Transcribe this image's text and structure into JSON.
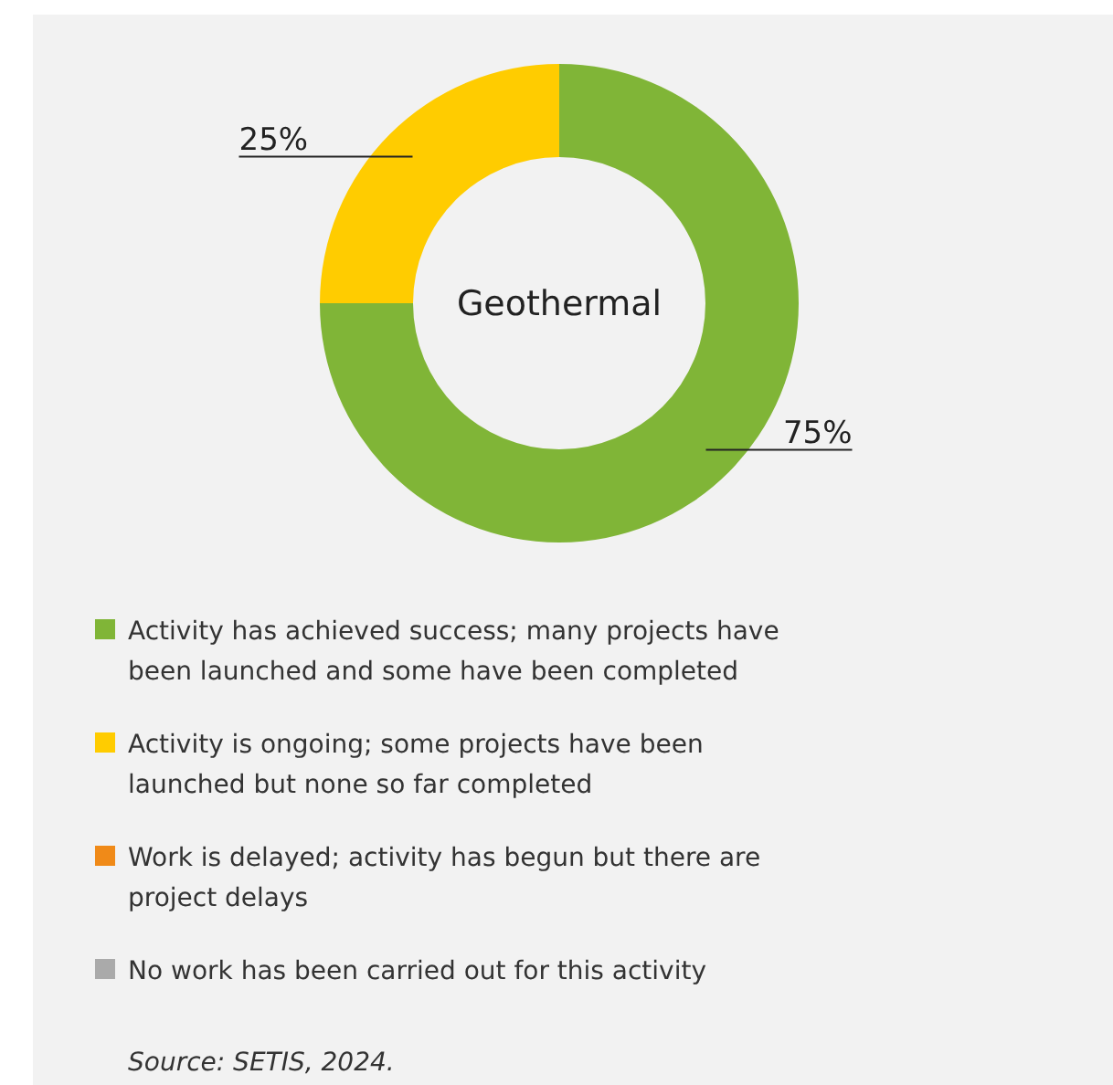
{
  "chart_data": {
    "type": "donut",
    "title": "Geothermal",
    "categories": [
      "Activity has achieved success; many projects have been launched and some have been completed",
      "Activity is ongoing; some projects have been launched but none so far completed",
      "Work is delayed; activity has begun but there are project delays",
      "No work has been carried out for this activity"
    ],
    "values": [
      75,
      25,
      0,
      0
    ],
    "colors": [
      "#80b537",
      "#ffcc00",
      "#f08a18",
      "#aaaaaa"
    ],
    "value_labels": [
      "75%",
      "25%",
      null,
      null
    ],
    "legend": "bottom",
    "annotations": [
      "Source: SETIS, 2024."
    ]
  }
}
